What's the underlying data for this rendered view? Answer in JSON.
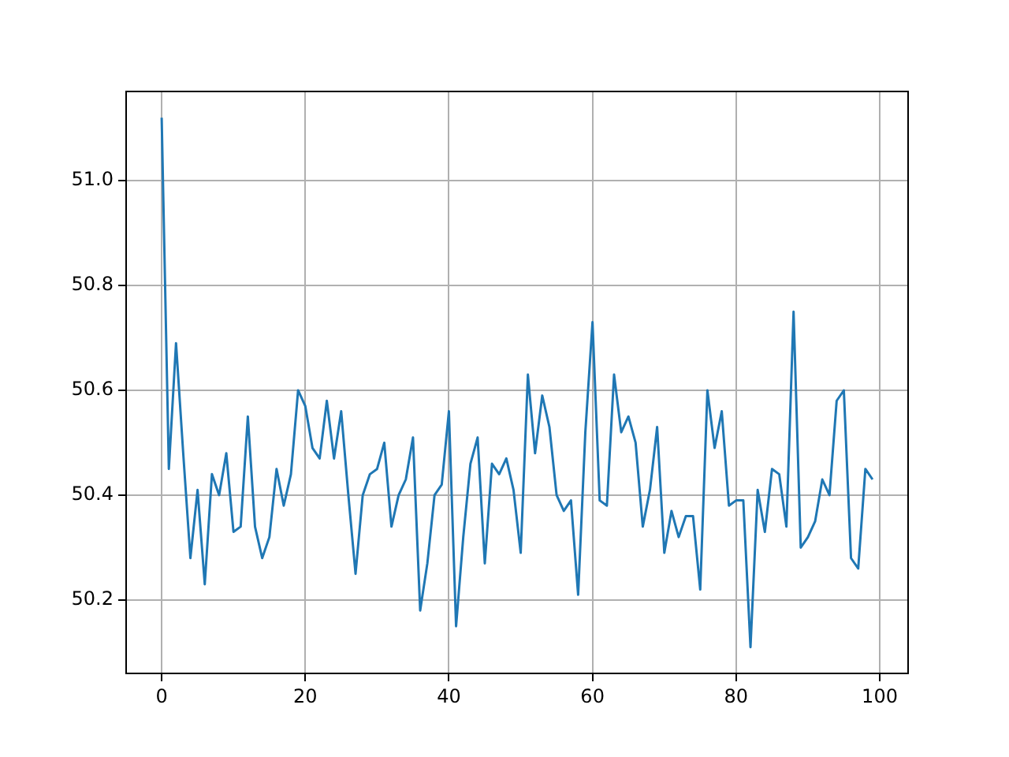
{
  "chart_data": {
    "type": "line",
    "x": [
      0,
      1,
      2,
      3,
      4,
      5,
      6,
      7,
      8,
      9,
      10,
      11,
      12,
      13,
      14,
      15,
      16,
      17,
      18,
      19,
      20,
      21,
      22,
      23,
      24,
      25,
      26,
      27,
      28,
      29,
      30,
      31,
      32,
      33,
      34,
      35,
      36,
      37,
      38,
      39,
      40,
      41,
      42,
      43,
      44,
      45,
      46,
      47,
      48,
      49,
      50,
      51,
      52,
      53,
      54,
      55,
      56,
      57,
      58,
      59,
      60,
      61,
      62,
      63,
      64,
      65,
      66,
      67,
      68,
      69,
      70,
      71,
      72,
      73,
      74,
      75,
      76,
      77,
      78,
      79,
      80,
      81,
      82,
      83,
      84,
      85,
      86,
      87,
      88,
      89,
      90,
      91,
      92,
      93,
      94,
      95,
      96,
      97,
      98,
      99
    ],
    "series": [
      {
        "color": "#1f77b4",
        "values": [
          51.12,
          50.45,
          50.69,
          50.48,
          50.28,
          50.41,
          50.23,
          50.44,
          50.4,
          50.48,
          50.33,
          50.34,
          50.55,
          50.34,
          50.28,
          50.32,
          50.45,
          50.38,
          50.44,
          50.6,
          50.57,
          50.49,
          50.47,
          50.58,
          50.47,
          50.56,
          50.4,
          50.25,
          50.4,
          50.44,
          50.45,
          50.5,
          50.34,
          50.4,
          50.43,
          50.51,
          50.18,
          50.27,
          50.4,
          50.42,
          50.56,
          50.15,
          50.32,
          50.46,
          50.51,
          50.27,
          50.46,
          50.44,
          50.47,
          50.41,
          50.29,
          50.63,
          50.48,
          50.59,
          50.53,
          50.4,
          50.37,
          50.39,
          50.21,
          50.52,
          50.73,
          50.39,
          50.38,
          50.63,
          50.52,
          50.55,
          50.5,
          50.34,
          50.41,
          50.53,
          50.29,
          50.37,
          50.32,
          50.36,
          50.36,
          50.22,
          50.6,
          50.49,
          50.56,
          50.38,
          50.39,
          50.39,
          50.11,
          50.41,
          50.33,
          50.45,
          50.44,
          50.34,
          50.75,
          50.3,
          50.32,
          50.35,
          50.43,
          50.4,
          50.58,
          50.6,
          50.28,
          50.26,
          50.45,
          50.43
        ]
      }
    ],
    "xlim": [
      -4.95,
      103.95
    ],
    "xticks": [
      0,
      20,
      40,
      60,
      80,
      100
    ],
    "ylim": [
      50.06,
      51.17
    ],
    "yticks": [
      {
        "value": 50.2,
        "label": "50.2"
      },
      {
        "value": 50.4,
        "label": "50.4"
      },
      {
        "value": 50.6,
        "label": "50.6"
      },
      {
        "value": 50.8,
        "label": "50.8"
      },
      {
        "value": 51,
        "label": "51.0"
      }
    ],
    "grid": true,
    "legend": false,
    "marker": "none",
    "line_style": "solid"
  }
}
